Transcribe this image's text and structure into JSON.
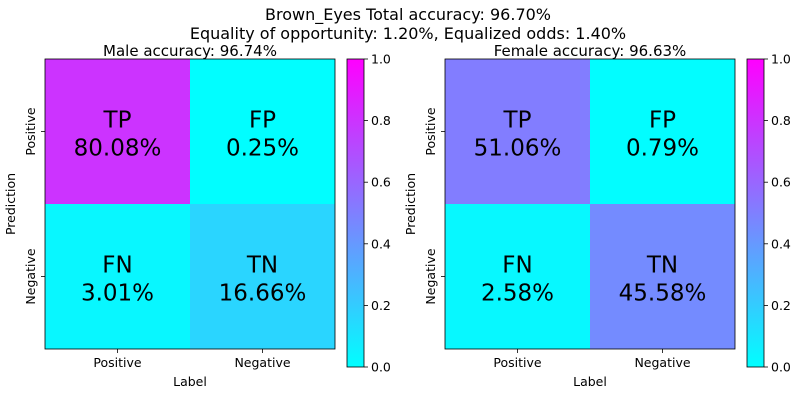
{
  "figure": {
    "title_line1": "Brown_Eyes    Total accuracy: 96.70%",
    "title_line2": "Equality of opportunity: 1.20%, Equalized odds: 1.40%"
  },
  "colormap": {
    "name": "cool",
    "low_color": "#00ffff",
    "high_color": "#ff00ff"
  },
  "chart_data": [
    {
      "type": "heatmap",
      "title": "Male accuracy: 96.74%",
      "xlabel": "Label",
      "ylabel": "Prediction",
      "x_categories": [
        "Positive",
        "Negative"
      ],
      "y_categories": [
        "Positive",
        "Negative"
      ],
      "cells": [
        {
          "row": 0,
          "col": 0,
          "code": "TP",
          "label": "80.08%",
          "value": 0.8008
        },
        {
          "row": 0,
          "col": 1,
          "code": "FP",
          "label": "0.25%",
          "value": 0.0025
        },
        {
          "row": 1,
          "col": 0,
          "code": "FN",
          "label": "3.01%",
          "value": 0.0301
        },
        {
          "row": 1,
          "col": 1,
          "code": "TN",
          "label": "16.66%",
          "value": 0.1666
        }
      ],
      "colorbar": {
        "vmin": 0.0,
        "vmax": 1.0,
        "ticks": [
          "0.0",
          "0.2",
          "0.4",
          "0.6",
          "0.8",
          "1.0"
        ]
      }
    },
    {
      "type": "heatmap",
      "title": "Female accuracy: 96.63%",
      "xlabel": "Label",
      "ylabel": "Prediction",
      "x_categories": [
        "Positive",
        "Negative"
      ],
      "y_categories": [
        "Positive",
        "Negative"
      ],
      "cells": [
        {
          "row": 0,
          "col": 0,
          "code": "TP",
          "label": "51.06%",
          "value": 0.5106
        },
        {
          "row": 0,
          "col": 1,
          "code": "FP",
          "label": "0.79%",
          "value": 0.0079
        },
        {
          "row": 1,
          "col": 0,
          "code": "FN",
          "label": "2.58%",
          "value": 0.0258
        },
        {
          "row": 1,
          "col": 1,
          "code": "TN",
          "label": "45.58%",
          "value": 0.4558
        }
      ],
      "colorbar": {
        "vmin": 0.0,
        "vmax": 1.0,
        "ticks": [
          "0.0",
          "0.2",
          "0.4",
          "0.6",
          "0.8",
          "1.0"
        ]
      }
    }
  ]
}
